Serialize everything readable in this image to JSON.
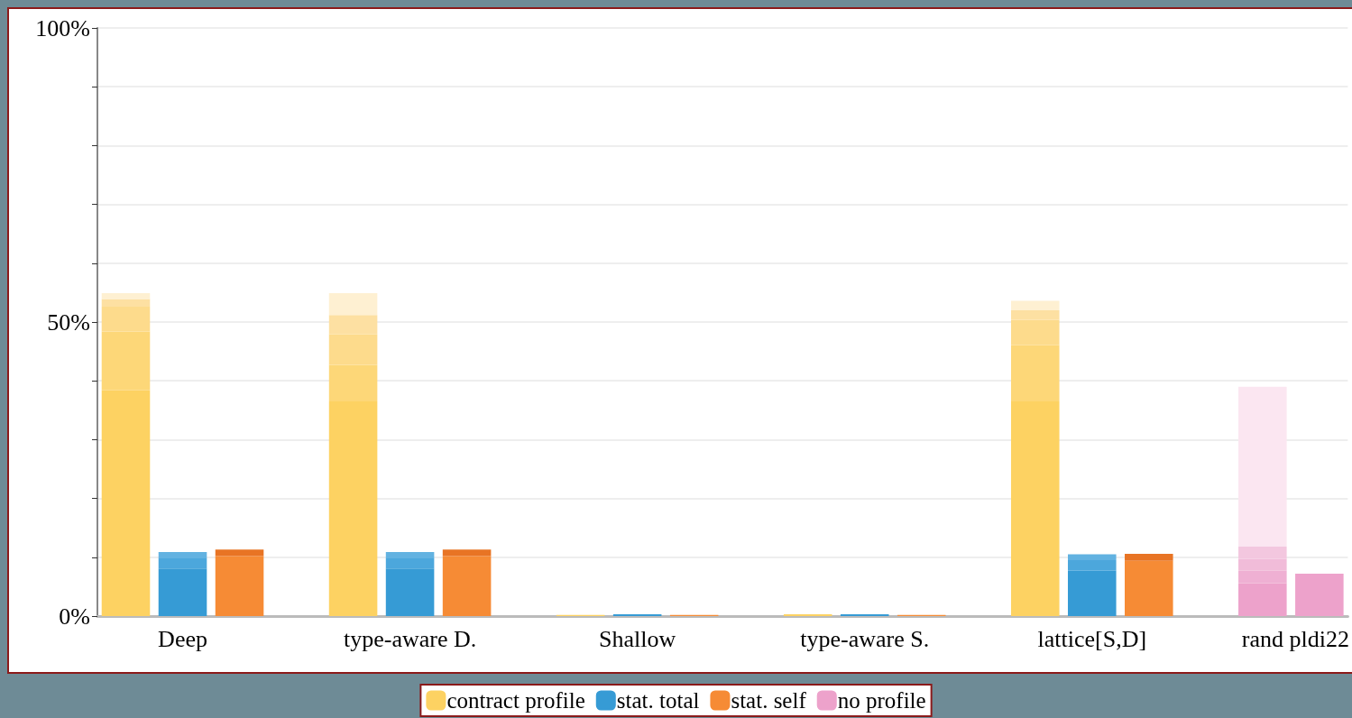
{
  "chart_data": {
    "type": "bar",
    "stacked": true,
    "categories": [
      null,
      "Deep",
      null,
      null,
      null,
      "type-aware D.",
      null,
      null,
      null,
      "Shallow",
      null,
      null,
      null,
      "type-aware S.",
      null,
      null,
      null,
      "lattice[S,D]",
      null,
      null,
      "rand",
      "pldi22"
    ],
    "series": [
      {
        "name": "contract profile",
        "color": "#fdd262",
        "values": [
          38.4,
          null,
          null,
          null,
          36.5,
          null,
          null,
          null,
          0.2,
          null,
          null,
          null,
          0.3,
          null,
          null,
          null,
          36.5,
          null,
          null,
          null,
          null,
          null
        ]
      },
      {
        "color": "#fdd778",
        "values": [
          10.0,
          null,
          null,
          null,
          6.2,
          null,
          null,
          null,
          null,
          null,
          null,
          null,
          null,
          null,
          null,
          null,
          9.6,
          null,
          null,
          null,
          null,
          null
        ]
      },
      {
        "color": "#fddb8c",
        "values": [
          4.2,
          null,
          null,
          null,
          5.2,
          null,
          null,
          null,
          null,
          null,
          null,
          null,
          null,
          null,
          null,
          null,
          4.3,
          null,
          null,
          null,
          null,
          null
        ]
      },
      {
        "color": "#fde0a2",
        "values": [
          1.3,
          null,
          null,
          null,
          3.3,
          null,
          null,
          null,
          null,
          null,
          null,
          null,
          null,
          null,
          null,
          null,
          1.6,
          null,
          null,
          null,
          null,
          null
        ]
      },
      {
        "color": "#fef0d2",
        "values": [
          1.0,
          null,
          null,
          null,
          3.7,
          null,
          null,
          null,
          null,
          null,
          null,
          null,
          null,
          null,
          null,
          null,
          1.6,
          null,
          null,
          null,
          null,
          null
        ]
      },
      {
        "name": "stat. total",
        "color": "#369bd5",
        "values": [
          null,
          8.1,
          null,
          null,
          null,
          8.1,
          null,
          null,
          null,
          0.3,
          null,
          null,
          null,
          0.3,
          null,
          null,
          null,
          7.7,
          null,
          null,
          null,
          null
        ]
      },
      {
        "color": "#4ca7dc",
        "values": [
          null,
          1.7,
          null,
          null,
          null,
          1.7,
          null,
          null,
          null,
          null,
          null,
          null,
          null,
          null,
          null,
          null,
          null,
          1.8,
          null,
          null,
          null,
          null
        ]
      },
      {
        "color": "#62b2e1",
        "values": [
          null,
          1.1,
          null,
          null,
          null,
          1.1,
          null,
          null,
          null,
          null,
          null,
          null,
          null,
          null,
          null,
          null,
          null,
          1.0,
          null,
          null,
          null,
          null
        ]
      },
      {
        "name": "stat. self",
        "color": "#f68b35",
        "values": [
          null,
          null,
          10.2,
          null,
          null,
          null,
          10.2,
          null,
          null,
          null,
          0.2,
          null,
          null,
          null,
          0.2,
          null,
          null,
          null,
          9.4,
          null,
          null,
          null
        ]
      },
      {
        "color": "#e87424",
        "values": [
          null,
          null,
          1.1,
          null,
          null,
          null,
          1.1,
          null,
          null,
          null,
          null,
          null,
          null,
          null,
          null,
          null,
          null,
          null,
          1.2,
          null,
          null,
          null
        ]
      },
      {
        "name": "no profile",
        "color": "#eda2cb",
        "values": [
          null,
          null,
          null,
          null,
          null,
          null,
          null,
          null,
          null,
          null,
          null,
          null,
          null,
          null,
          null,
          null,
          null,
          null,
          null,
          null,
          5.6,
          7.2
        ]
      },
      {
        "color": "#efb0d3",
        "values": [
          null,
          null,
          null,
          null,
          null,
          null,
          null,
          null,
          null,
          null,
          null,
          null,
          null,
          null,
          null,
          null,
          null,
          null,
          null,
          null,
          2.1,
          null
        ]
      },
      {
        "color": "#f1bcd9",
        "values": [
          null,
          null,
          null,
          null,
          null,
          null,
          null,
          null,
          null,
          null,
          null,
          null,
          null,
          null,
          null,
          null,
          null,
          null,
          null,
          null,
          2.0,
          null
        ]
      },
      {
        "color": "#f3c7df",
        "values": [
          null,
          null,
          null,
          null,
          null,
          null,
          null,
          null,
          null,
          null,
          null,
          null,
          null,
          null,
          null,
          null,
          null,
          null,
          null,
          null,
          2.1,
          null
        ]
      },
      {
        "color": "#fbe6f1",
        "values": [
          null,
          null,
          null,
          null,
          null,
          null,
          null,
          null,
          null,
          null,
          null,
          null,
          null,
          null,
          null,
          null,
          null,
          null,
          null,
          null,
          27.2,
          null
        ]
      }
    ],
    "ylim": [
      0,
      100
    ],
    "yticks": [
      {
        "value": 0,
        "label": "0%"
      },
      {
        "value": 10,
        "label": null
      },
      {
        "value": 20,
        "label": null
      },
      {
        "value": 30,
        "label": null
      },
      {
        "value": 40,
        "label": null
      },
      {
        "value": 50,
        "label": "50%"
      },
      {
        "value": 60,
        "label": null
      },
      {
        "value": 70,
        "label": null
      },
      {
        "value": 80,
        "label": null
      },
      {
        "value": 90,
        "label": null
      },
      {
        "value": 100,
        "label": "100%"
      }
    ],
    "grid": "y",
    "legend": "bottom"
  }
}
